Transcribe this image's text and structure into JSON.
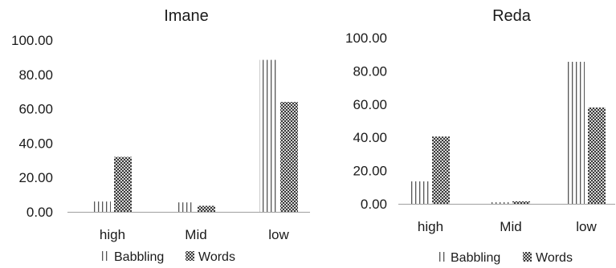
{
  "chart_data": [
    {
      "type": "bar",
      "title": "Imane",
      "categories": [
        "high",
        "Mid",
        "low"
      ],
      "series": [
        {
          "name": "Babbling",
          "values": [
            6,
            5.5,
            88.5
          ],
          "pattern": "vertical-lines"
        },
        {
          "name": "Words",
          "values": [
            32,
            3.5,
            64
          ],
          "pattern": "checkerboard"
        }
      ],
      "ylim": [
        0,
        100
      ],
      "yticks": [
        "0.00",
        "20.00",
        "40.00",
        "60.00",
        "80.00",
        "100.00"
      ],
      "grid": false,
      "legend": "bottom"
    },
    {
      "type": "bar",
      "title": "Reda",
      "categories": [
        "high",
        "Mid",
        "low"
      ],
      "series": [
        {
          "name": "Babbling",
          "values": [
            13.5,
            1,
            85.5
          ],
          "pattern": "vertical-lines"
        },
        {
          "name": "Words",
          "values": [
            40.5,
            1.5,
            58
          ],
          "pattern": "checkerboard"
        }
      ],
      "ylim": [
        0,
        100
      ],
      "yticks": [
        "0.00",
        "20.00",
        "40.00",
        "60.00",
        "80.00",
        "100.00"
      ],
      "grid": false,
      "legend": "bottom"
    }
  ],
  "colors": {
    "ink": "#1a1a1a",
    "axis": "#a0a0a0",
    "pattern_line": "#555555",
    "checker_dark": "#3a3a3a",
    "checker_light": "#d6d6d6"
  }
}
